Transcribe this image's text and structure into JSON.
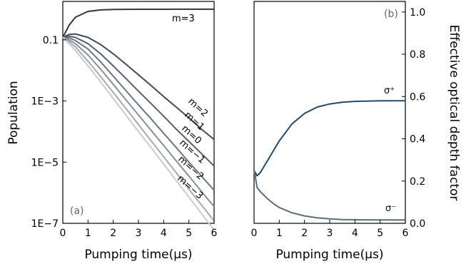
{
  "chart_data": [
    {
      "type": "line",
      "panel_label": "(a)",
      "xlabel": "Pumping time(μs)",
      "ylabel": "Population",
      "xlim": [
        0,
        6
      ],
      "ylim": [
        1e-07,
        1.8
      ],
      "yscale": "log",
      "xticks": [
        "0",
        "1",
        "2",
        "3",
        "4",
        "5",
        "6"
      ],
      "yticks": [
        {
          "value": 0.1,
          "label": "0.1"
        },
        {
          "value": 0.001,
          "label": "1E−3"
        },
        {
          "value": 1e-05,
          "label": "1E−5"
        },
        {
          "value": 1e-07,
          "label": "1E−7"
        }
      ],
      "x": [
        0,
        0.25,
        0.5,
        1,
        1.5,
        2,
        2.5,
        3,
        3.5,
        4,
        4.5,
        5,
        5.5,
        6
      ],
      "series": [
        {
          "name": "m=3",
          "color": "#2e3648",
          "values": [
            0.12,
            0.3,
            0.55,
            0.85,
            0.95,
            0.98,
            0.99,
            0.995,
            0.998,
            0.999,
            1.0,
            1.0,
            1.0,
            1.0
          ]
        },
        {
          "name": "m=2",
          "color": "#3f4b5e",
          "values": [
            0.12,
            0.15,
            0.155,
            0.12,
            0.07,
            0.035,
            0.016,
            0.0072,
            0.0032,
            0.0014,
            0.00063,
            0.00028,
            0.00012,
            5.5e-05
          ]
        },
        {
          "name": "m=1",
          "color": "#56606f",
          "values": [
            0.12,
            0.13,
            0.12,
            0.075,
            0.035,
            0.014,
            0.0055,
            0.0021,
            0.00082,
            0.00032,
            0.00012,
            4.8e-05,
            1.9e-05,
            7.5e-06
          ]
        },
        {
          "name": "m=0",
          "color": "#6e7582",
          "values": [
            0.12,
            0.115,
            0.095,
            0.05,
            0.019,
            0.0065,
            0.0022,
            0.00075,
            0.00026,
            8.8e-05,
            3e-05,
            1e-05,
            3.5e-06,
            1.2e-06
          ]
        },
        {
          "name": "m=−1",
          "color": "#898f99",
          "values": [
            0.12,
            0.1,
            0.075,
            0.032,
            0.011,
            0.0035,
            0.0011,
            0.00035,
            0.00011,
            3.5e-05,
            1.1e-05,
            3.5e-06,
            1.1e-06,
            3.5e-07
          ]
        },
        {
          "name": "m=−2",
          "color": "#a6aab1",
          "values": [
            0.12,
            0.088,
            0.058,
            0.02,
            0.0063,
            0.0019,
            0.00058,
            0.00017,
            5e-05,
            1.5e-05,
            4.5e-06,
            1.3e-06,
            4e-07,
            1.2e-07
          ]
        },
        {
          "name": "m=−3",
          "color": "#c8cbcf",
          "values": [
            0.12,
            0.075,
            0.045,
            0.014,
            0.0042,
            0.0012,
            0.00035,
            0.0001,
            3e-05,
            8.7e-06,
            2.5e-06,
            7.2e-07,
            2.1e-07,
            6e-08
          ]
        }
      ]
    },
    {
      "type": "line",
      "panel_label": "(b)",
      "xlabel": "Pumping time(μs)",
      "ylabel": "Effective optical depth factor",
      "xlim": [
        0,
        6
      ],
      "ylim": [
        0,
        1.05
      ],
      "xticks": [
        "0",
        "1",
        "2",
        "3",
        "4",
        "5",
        "6"
      ],
      "yticks": [
        {
          "value": 0.0,
          "label": "0.0"
        },
        {
          "value": 0.2,
          "label": "0.2"
        },
        {
          "value": 0.4,
          "label": "0.4"
        },
        {
          "value": 0.6,
          "label": "0.6"
        },
        {
          "value": 0.8,
          "label": "0.8"
        },
        {
          "value": 1.0,
          "label": "1.0"
        }
      ],
      "x": [
        0,
        0.05,
        0.12,
        0.25,
        0.5,
        0.75,
        1,
        1.5,
        2,
        2.5,
        3,
        3.5,
        4,
        5,
        6
      ],
      "series": [
        {
          "name": "σ⁺",
          "color": "#1f4b73",
          "values": [
            0.25,
            0.24,
            0.225,
            0.24,
            0.29,
            0.34,
            0.39,
            0.47,
            0.52,
            0.55,
            0.565,
            0.573,
            0.577,
            0.58,
            0.58
          ]
        },
        {
          "name": "σ⁻",
          "color": "#5a6e80",
          "values": [
            0.25,
            0.22,
            0.17,
            0.15,
            0.12,
            0.095,
            0.075,
            0.05,
            0.035,
            0.026,
            0.021,
            0.018,
            0.017,
            0.016,
            0.016
          ]
        }
      ]
    }
  ]
}
